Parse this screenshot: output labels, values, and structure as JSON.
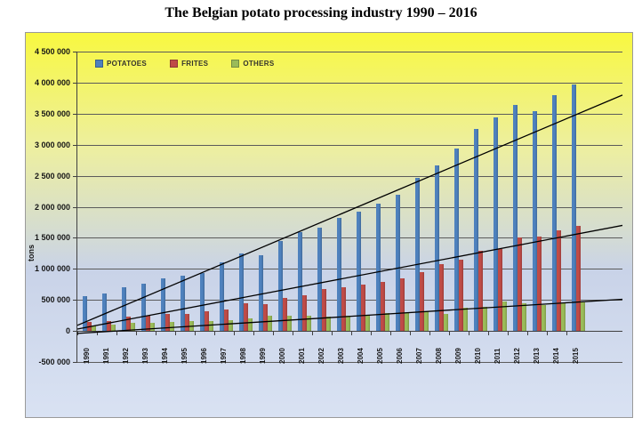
{
  "chart_data": {
    "type": "bar",
    "title": "The Belgian potato processing industry 1990 – 2016",
    "ylabel": "tons",
    "xlabel": "",
    "ylim": [
      -500000,
      4500000
    ],
    "ytick_step": 500000,
    "grid": true,
    "legend_position": "top-left",
    "categories": [
      "1990",
      "1991",
      "1992",
      "1993",
      "1994",
      "1995",
      "1996",
      "1997",
      "1998",
      "1999",
      "2000",
      "2001",
      "2002",
      "2003",
      "2004",
      "2005",
      "2006",
      "2007",
      "2008",
      "2009",
      "2010",
      "2011",
      "2012",
      "2013",
      "2014",
      "2015"
    ],
    "series": [
      {
        "name": "POTATOES",
        "color": "#4E81BD",
        "values": [
          560000,
          610000,
          705000,
          760000,
          845000,
          895000,
          935000,
          1105000,
          1255000,
          1215000,
          1455000,
          1590000,
          1665000,
          1820000,
          1925000,
          2045000,
          2190000,
          2460000,
          2660000,
          2940000,
          3250000,
          3440000,
          3640000,
          3540000,
          3805000,
          3970000
        ]
      },
      {
        "name": "FRITES",
        "color": "#BF4B47",
        "values": [
          140000,
          165000,
          225000,
          240000,
          280000,
          270000,
          310000,
          345000,
          450000,
          430000,
          535000,
          575000,
          670000,
          705000,
          745000,
          790000,
          840000,
          940000,
          1075000,
          1145000,
          1290000,
          1315000,
          1500000,
          1520000,
          1615000,
          1690000
        ]
      },
      {
        "name": "OTHERS",
        "color": "#9ABB59",
        "values": [
          85000,
          100000,
          125000,
          135000,
          150000,
          155000,
          165000,
          180000,
          200000,
          240000,
          250000,
          240000,
          225000,
          250000,
          260000,
          285000,
          295000,
          320000,
          275000,
          370000,
          395000,
          480000,
          440000,
          420000,
          450000,
          465000
        ]
      }
    ],
    "trendlines": [
      {
        "series": "POTATOES",
        "color": "#000000",
        "start_value": 90000,
        "end_value": 3800000
      },
      {
        "series": "FRITES",
        "color": "#000000",
        "start_value": 30000,
        "end_value": 1700000
      },
      {
        "series": "OTHERS",
        "color": "#000000",
        "start_value": -40000,
        "end_value": 510000
      }
    ],
    "background": {
      "top": "#F8F840",
      "upper_mid": "#EDEFA0",
      "lower_mid": "#C9D3E8",
      "bottom": "#D9E2F3"
    },
    "gridline_color": "#5b5b5b",
    "label_color": "#161616"
  }
}
